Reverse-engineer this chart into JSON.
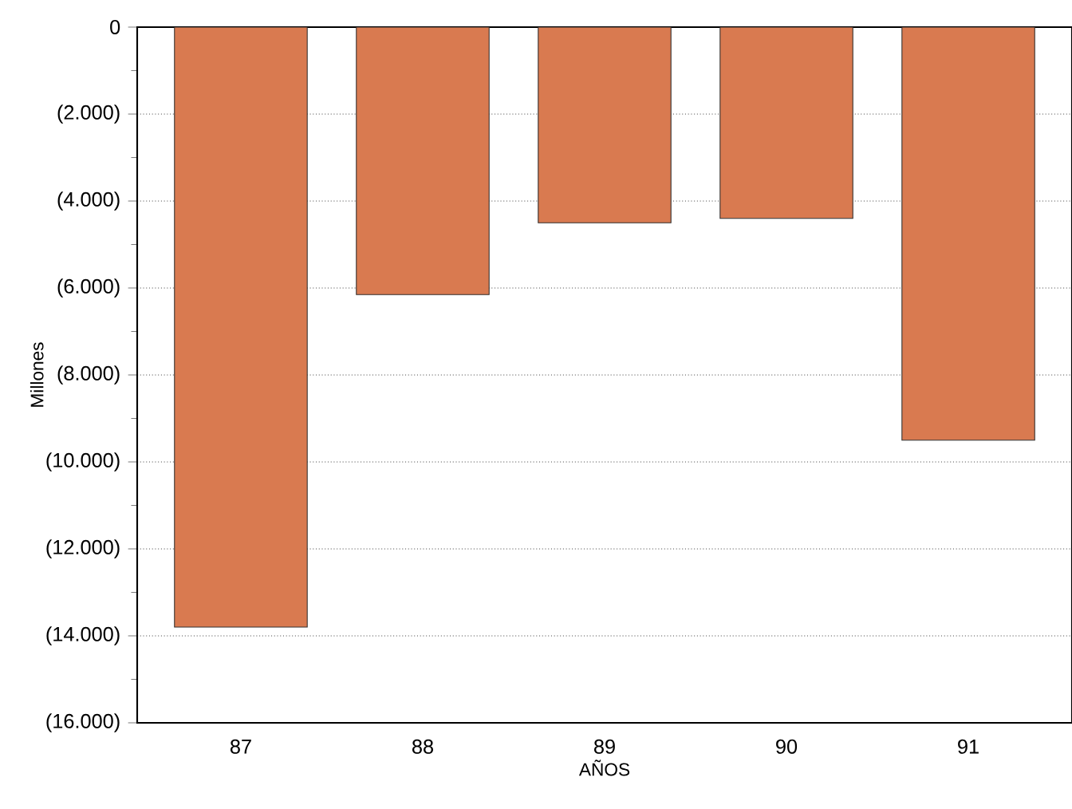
{
  "chart_data": {
    "type": "bar",
    "xlabel": "AÑOS",
    "ylabel": "Millones",
    "categories": [
      "87",
      "88",
      "89",
      "90",
      "91"
    ],
    "values": [
      -13800,
      -6150,
      -4500,
      -4400,
      -9500
    ],
    "color": "#d97a50",
    "ylim": [
      -16000,
      0
    ],
    "yticks": [
      0,
      {
        "value": -2000,
        "label": "(2.000)"
      },
      {
        "value": -4000,
        "label": "(4.000)"
      },
      {
        "value": -6000,
        "label": "(6.000)"
      },
      {
        "value": -8000,
        "label": "(8.000)"
      },
      {
        "value": -10000,
        "label": "(10.000)"
      },
      {
        "value": -12000,
        "label": "(12.000)"
      },
      {
        "value": -14000,
        "label": "(14.000)"
      },
      {
        "value": -16000,
        "label": "(16.000)"
      }
    ],
    "grid": "y"
  }
}
